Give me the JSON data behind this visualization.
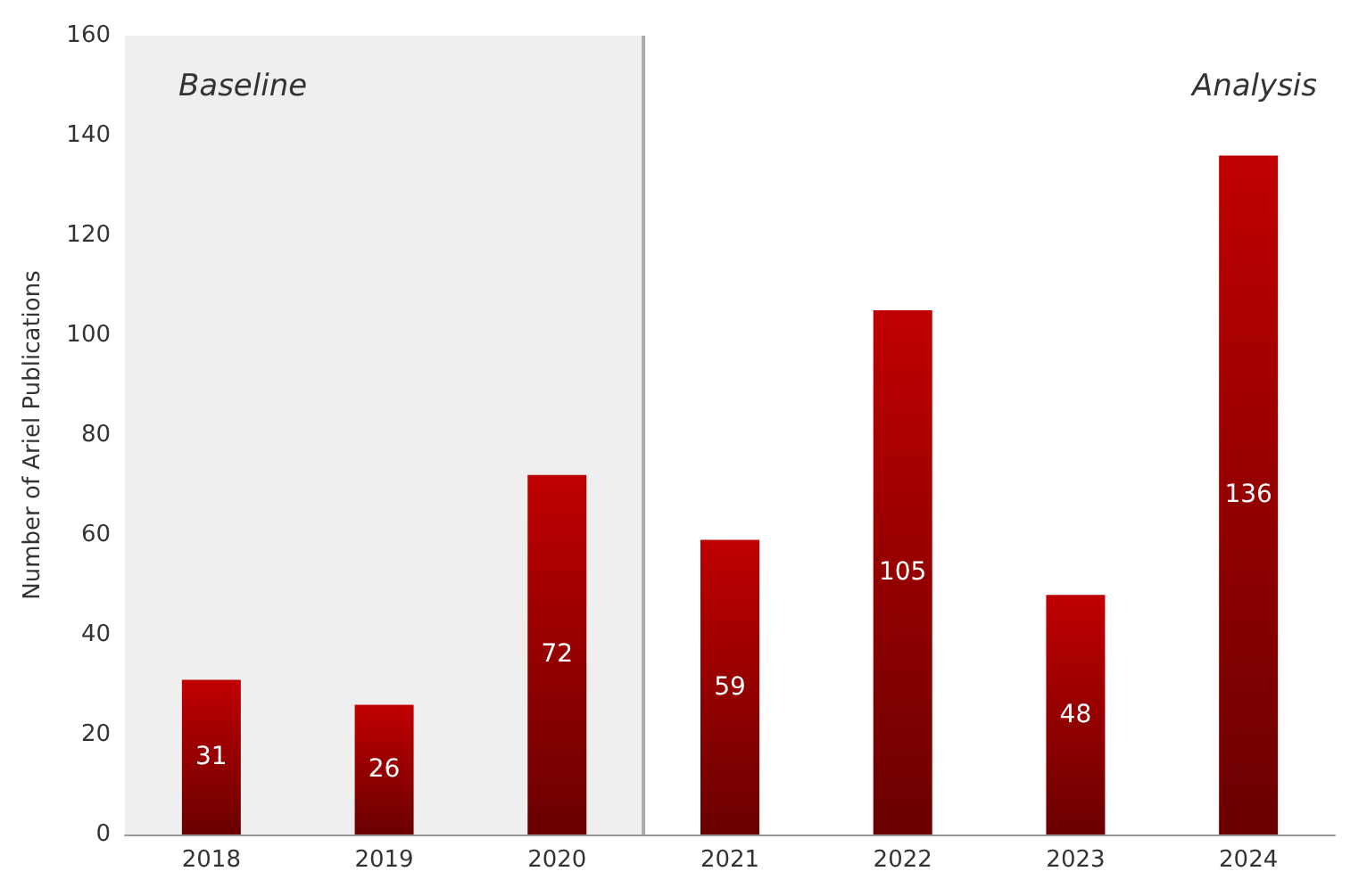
{
  "chart_data": {
    "type": "bar",
    "ylabel": "Number of Ariel Publications",
    "categories": [
      "2018",
      "2019",
      "2020",
      "2021",
      "2022",
      "2023",
      "2024"
    ],
    "values": [
      31,
      26,
      72,
      59,
      105,
      48,
      136
    ],
    "color": "#c00000",
    "ylim": [
      0,
      160
    ],
    "yticks": [
      0,
      20,
      40,
      60,
      80,
      100,
      120,
      140,
      160
    ],
    "grid": false,
    "data_labels": true,
    "bands": [
      {
        "axis": "x",
        "from": "2018",
        "to": "2020",
        "label": "Baseline",
        "color": "#efefef"
      }
    ],
    "annotations": [
      "Analysis"
    ]
  }
}
